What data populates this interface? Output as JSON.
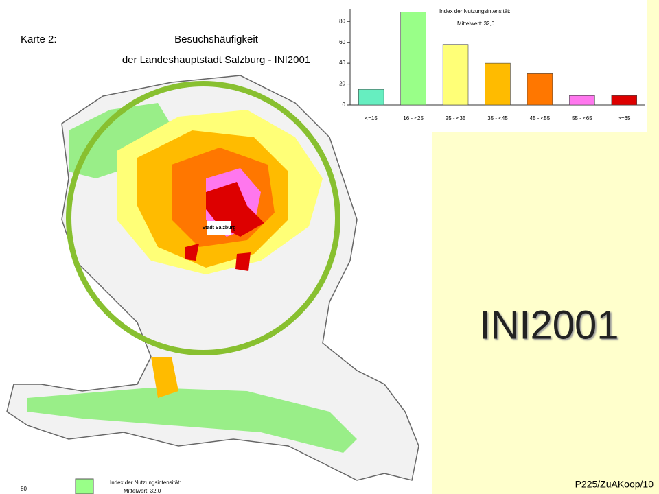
{
  "map": {
    "label": "Karte 2:",
    "title": "Besuchshäufigkeit",
    "subtitle": "der Landeshauptstadt Salzburg - INI2001",
    "city": "Stadt Salzburg",
    "legend_tick": "80",
    "legend_title": "Index der Nutzungsintensität:",
    "legend_mean": "Mittelwert: 32,0"
  },
  "slide": {
    "title": "INI2001",
    "footer": "P225/ZuAKoop/10"
  },
  "chart_data": {
    "type": "bar",
    "annotation": "Index der Nutzungsintensität:",
    "subtitle": "Mittelwert: 32,0",
    "categories": [
      "<=15",
      "16 - <25",
      "25 - <35",
      "35 - <45",
      "45 - <55",
      "55 - <65",
      ">=65"
    ],
    "values": [
      15,
      89,
      58,
      40,
      30,
      9,
      9
    ],
    "colors": [
      "#66eec0",
      "#99ff88",
      "#ffff77",
      "#ffbb00",
      "#ff7700",
      "#ff77ee",
      "#dd0000"
    ],
    "ylim": [
      0,
      92
    ],
    "yticks": [
      0,
      20,
      40,
      60,
      80
    ]
  }
}
